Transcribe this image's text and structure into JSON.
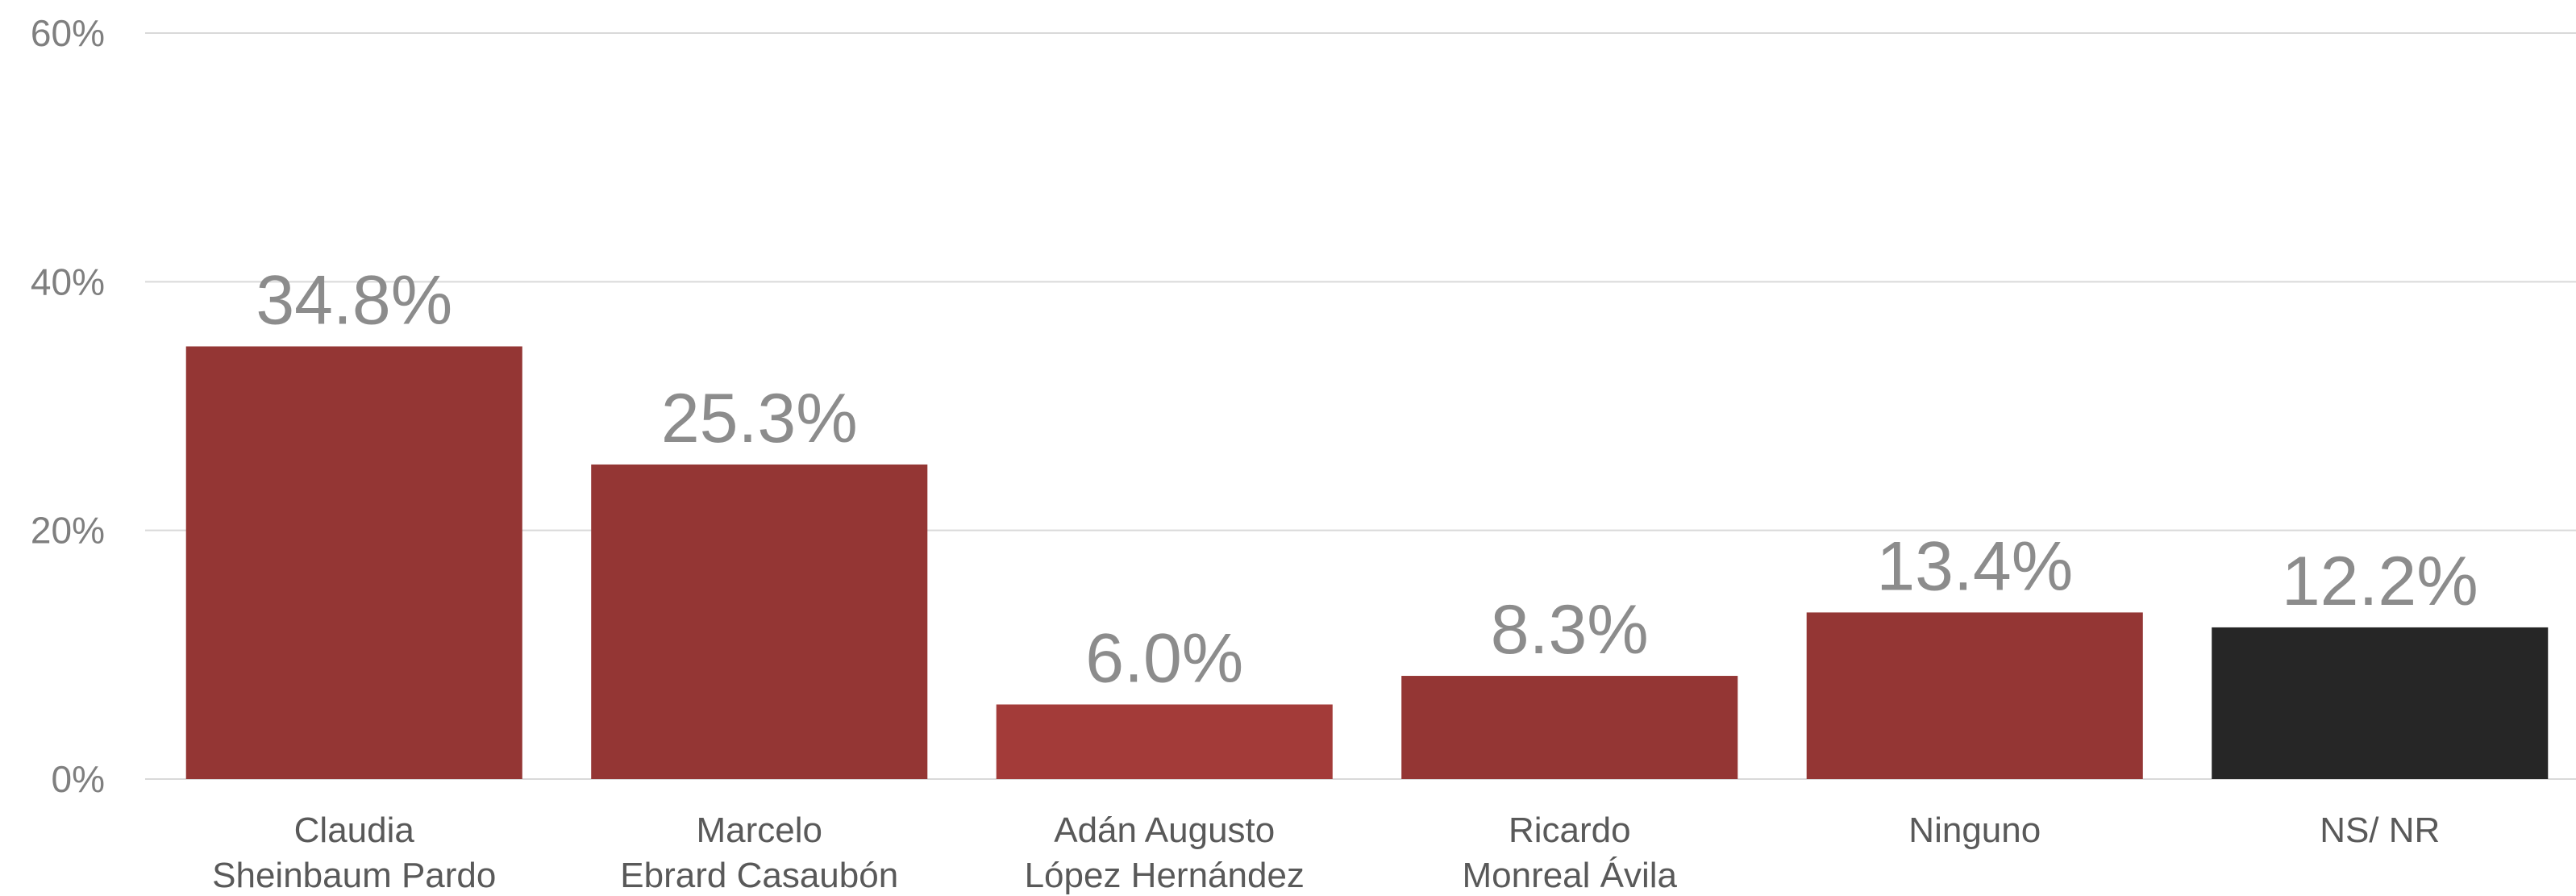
{
  "chart_data": {
    "type": "bar",
    "categories": [
      [
        "Claudia",
        "Sheinbaum Pardo"
      ],
      [
        "Marcelo",
        "Ebrard Casaubón"
      ],
      [
        "Adán Augusto",
        "López Hernández"
      ],
      [
        "Ricardo",
        "Monreal Ávila"
      ],
      [
        "Ninguno"
      ],
      [
        "NS/ NR"
      ]
    ],
    "values": [
      34.8,
      25.3,
      6.0,
      8.3,
      13.4,
      12.2
    ],
    "data_labels": [
      "34.8%",
      "25.3%",
      "6.0%",
      "8.3%",
      "13.4%",
      "12.2%"
    ],
    "bar_colors": [
      "#943634",
      "#943634",
      "#a33b39",
      "#943634",
      "#943634",
      "#262626"
    ],
    "ylim": [
      0,
      60
    ],
    "y_ticks": [
      0,
      20,
      40,
      60
    ],
    "y_tick_labels": [
      "0%",
      "20%",
      "40%",
      "60%"
    ],
    "grid": true,
    "title": "",
    "xlabel": "",
    "ylabel": ""
  }
}
